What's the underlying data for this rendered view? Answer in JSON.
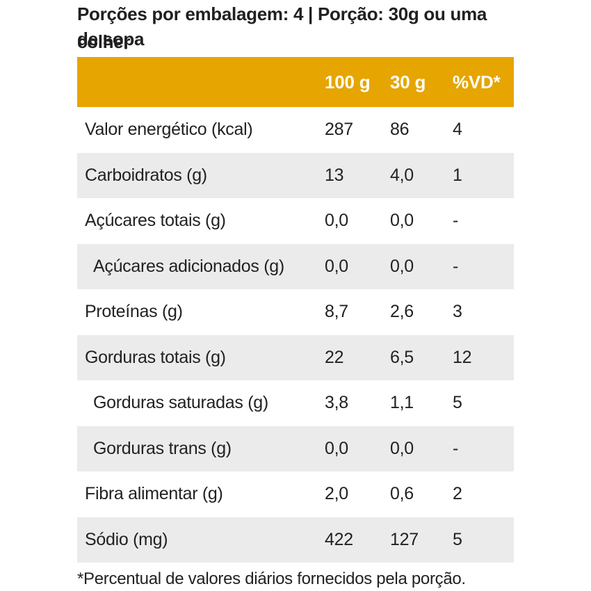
{
  "serving": {
    "line1": "Porções por embalagem: 4 | Porção: 30g ou uma colher",
    "line2": "de sopa"
  },
  "table": {
    "header": {
      "label": "",
      "col_100g": "100 g",
      "col_30g": "30 g",
      "col_vd": "%VD*"
    },
    "rows": [
      {
        "label": "Valor energético (kcal)",
        "v100": "287",
        "v30": "86",
        "vd": "4"
      },
      {
        "label": "Carboidratos (g)",
        "v100": "13",
        "v30": "4,0",
        "vd": "1"
      },
      {
        "label": "Açúcares totais (g)",
        "v100": "0,0",
        "v30": "0,0",
        "vd": "-"
      },
      {
        "label": "Açúcares adicionados (g)",
        "v100": "0,0",
        "v30": "0,0",
        "vd": "-"
      },
      {
        "label": "Proteínas (g)",
        "v100": "8,7",
        "v30": "2,6",
        "vd": "3"
      },
      {
        "label": "Gorduras totais (g)",
        "v100": "22",
        "v30": "6,5",
        "vd": "12"
      },
      {
        "label": "Gorduras saturadas (g)",
        "v100": "3,8",
        "v30": "1,1",
        "vd": "5"
      },
      {
        "label": "Gorduras trans (g)",
        "v100": "0,0",
        "v30": "0,0",
        "vd": "-"
      },
      {
        "label": "Fibra alimentar (g)",
        "v100": "2,0",
        "v30": "0,6",
        "vd": "2"
      },
      {
        "label": "Sódio (mg)",
        "v100": "422",
        "v30": "127",
        "vd": "5"
      }
    ]
  },
  "footnote": "*Percentual de valores diários fornecidos pela porção.",
  "colors": {
    "header_bg": "#e6a500",
    "header_text": "#ffffff",
    "shaded_row": "#ebebeb"
  }
}
